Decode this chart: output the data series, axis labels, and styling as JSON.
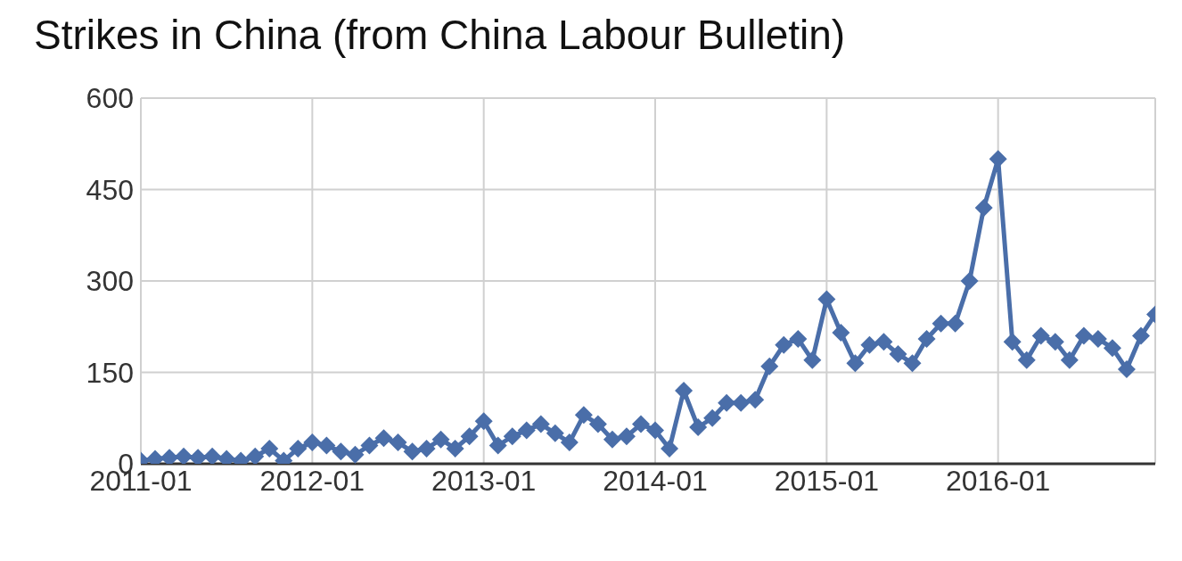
{
  "chart_data": {
    "type": "line",
    "title": "Strikes in China (from China Labour Bulletin)",
    "x": [
      "2011-01",
      "2011-02",
      "2011-03",
      "2011-04",
      "2011-05",
      "2011-06",
      "2011-07",
      "2011-08",
      "2011-09",
      "2011-10",
      "2011-11",
      "2011-12",
      "2012-01",
      "2012-02",
      "2012-03",
      "2012-04",
      "2012-05",
      "2012-06",
      "2012-07",
      "2012-08",
      "2012-09",
      "2012-10",
      "2012-11",
      "2012-12",
      "2013-01",
      "2013-02",
      "2013-03",
      "2013-04",
      "2013-05",
      "2013-06",
      "2013-07",
      "2013-08",
      "2013-09",
      "2013-10",
      "2013-11",
      "2013-12",
      "2014-01",
      "2014-02",
      "2014-03",
      "2014-04",
      "2014-05",
      "2014-06",
      "2014-07",
      "2014-08",
      "2014-09",
      "2014-10",
      "2014-11",
      "2014-12",
      "2015-01",
      "2015-02",
      "2015-03",
      "2015-04",
      "2015-05",
      "2015-06",
      "2015-07",
      "2015-08",
      "2015-09",
      "2015-10",
      "2015-11",
      "2015-12",
      "2016-01",
      "2016-02",
      "2016-03",
      "2016-04",
      "2016-05",
      "2016-06",
      "2016-07",
      "2016-08",
      "2016-09",
      "2016-10",
      "2016-11",
      "2016-12"
    ],
    "series": [
      {
        "color": "#4a6ea9",
        "values": [
          5,
          8,
          10,
          12,
          10,
          12,
          8,
          5,
          12,
          25,
          5,
          25,
          35,
          30,
          20,
          15,
          30,
          42,
          35,
          20,
          25,
          40,
          25,
          45,
          70,
          30,
          45,
          55,
          65,
          50,
          35,
          80,
          65,
          40,
          45,
          65,
          55,
          25,
          120,
          60,
          75,
          100,
          100,
          105,
          160,
          195,
          205,
          170,
          270,
          215,
          165,
          195,
          200,
          180,
          165,
          205,
          230,
          230,
          300,
          420,
          500,
          200,
          170,
          210,
          200,
          170,
          210,
          205,
          190,
          155,
          210,
          245
        ]
      }
    ],
    "xlim": [
      "2011-01",
      "2016-12"
    ],
    "xticks": [
      "2011-01",
      "2012-01",
      "2013-01",
      "2014-01",
      "2015-01",
      "2016-01"
    ],
    "ylim": [
      0,
      600
    ],
    "yticks": [
      0,
      150,
      300,
      450,
      600
    ],
    "grid": true,
    "marker": "diamond",
    "line_style": "solid"
  }
}
